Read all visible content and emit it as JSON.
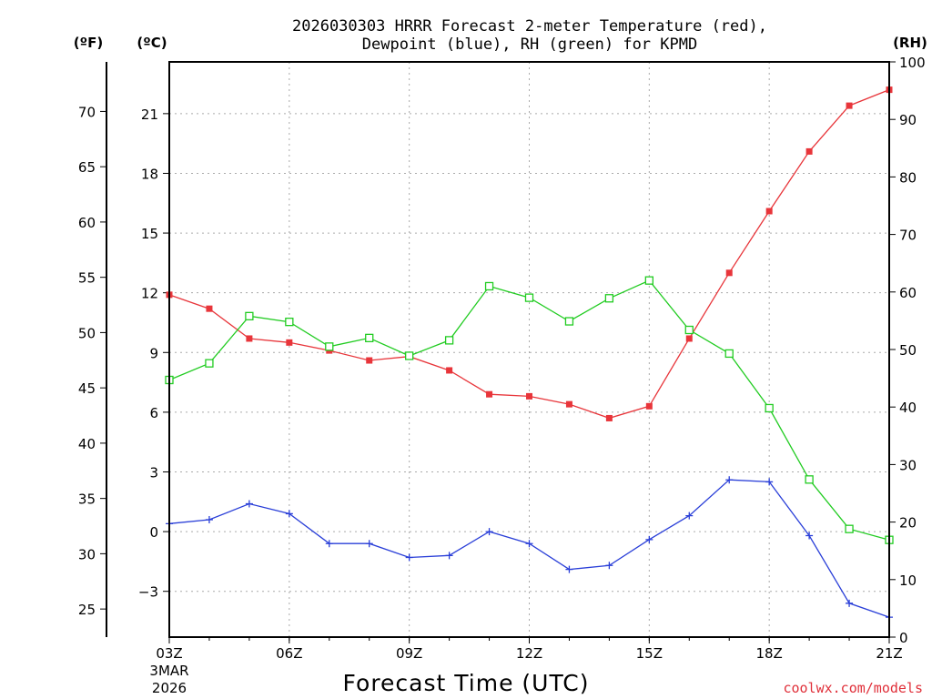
{
  "chart_data": {
    "type": "line",
    "title_line1": "2026030303 HRRR Forecast 2-meter Temperature (red),",
    "title_line2": "Dewpoint (blue), RH (green) for KPMD",
    "xlabel": "Forecast Time (UTC)",
    "credit": "coolwx.com/models",
    "date_labels": [
      "3MAR",
      "2026"
    ],
    "units": {
      "fahrenheit": "(ºF)",
      "celsius": "(ºC)",
      "rh": "(RH)"
    },
    "x_ticks": [
      {
        "hour": 0,
        "label": "03Z"
      },
      {
        "hour": 3,
        "label": "06Z"
      },
      {
        "hour": 6,
        "label": "09Z"
      },
      {
        "hour": 9,
        "label": "12Z"
      },
      {
        "hour": 12,
        "label": "15Z"
      },
      {
        "hour": 15,
        "label": "18Z"
      },
      {
        "hour": 18,
        "label": "21Z"
      }
    ],
    "xlim": [
      0,
      18
    ],
    "ylim_celsius": [
      -5.3,
      23.6
    ],
    "ylim_rh": [
      0,
      100
    ],
    "celsius_ticks": [
      -3,
      0,
      3,
      6,
      9,
      12,
      15,
      18,
      21
    ],
    "fahrenheit_ticks": [
      25,
      30,
      35,
      40,
      45,
      50,
      55,
      60,
      65,
      70
    ],
    "rh_ticks": [
      0,
      10,
      20,
      30,
      40,
      50,
      60,
      70,
      80,
      90,
      100
    ],
    "colors": {
      "temperature": "#e8353a",
      "dewpoint": "#2a3fd8",
      "rh": "#22cc22",
      "grid": "#aaaaaa",
      "frame": "#000000"
    },
    "series": [
      {
        "name": "Temperature",
        "axis": "celsius",
        "marker": "filled-square",
        "values": [
          11.9,
          11.2,
          9.7,
          9.5,
          9.1,
          8.6,
          8.8,
          8.1,
          6.9,
          6.8,
          6.4,
          5.7,
          6.3,
          9.7,
          13.0,
          16.1,
          19.1,
          21.4,
          22.2
        ]
      },
      {
        "name": "Dewpoint",
        "axis": "celsius",
        "marker": "plus",
        "values": [
          0.4,
          0.6,
          1.4,
          0.9,
          -0.6,
          -0.6,
          -1.3,
          -1.2,
          0.0,
          -0.6,
          -1.9,
          -1.7,
          -0.4,
          0.8,
          2.6,
          2.5,
          -0.2,
          -3.6,
          -4.3
        ]
      },
      {
        "name": "RH",
        "axis": "rh",
        "marker": "open-square",
        "values": [
          44.7,
          47.6,
          55.8,
          54.8,
          50.5,
          52.0,
          48.9,
          51.6,
          61.0,
          59.0,
          54.9,
          58.9,
          62.0,
          53.4,
          49.3,
          39.8,
          27.4,
          18.8,
          16.9
        ]
      }
    ]
  }
}
